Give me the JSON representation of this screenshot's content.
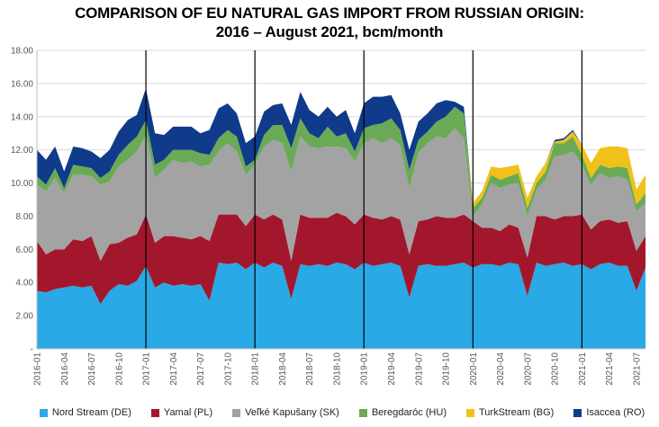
{
  "chart_data": {
    "type": "area",
    "stacked": true,
    "title_line1": "COMPARISON OF EU NATURAL GAS IMPORT FROM RUSSIAN ORIGIN:",
    "title_line2": "2016 – August 2021, bcm/month",
    "ylim": [
      0,
      18
    ],
    "yticks": [
      "-",
      "2.00",
      "4.00",
      "6.00",
      "8.00",
      "10.00",
      "12.00",
      "14.00",
      "16.00",
      "18.00"
    ],
    "grid": true,
    "legend_position": "bottom",
    "x_labels": [
      "2016-01",
      "2016-04",
      "2016-07",
      "2016-10",
      "2017-01",
      "2017-04",
      "2017-07",
      "2017-10",
      "2018-01",
      "2018-04",
      "2018-07",
      "2018-10",
      "2019-01",
      "2019-04",
      "2019-07",
      "2019-10",
      "2020-01",
      "2020-04",
      "2020-07",
      "2020-10",
      "2021-01",
      "2021-04",
      "2021-07"
    ],
    "year_markers": [
      "2017-01",
      "2018-01",
      "2019-01",
      "2020-01",
      "2021-01"
    ],
    "series": [
      {
        "name": "Nord Stream (DE)",
        "color": "#29a9e6",
        "values": [
          3.5,
          3.4,
          3.6,
          3.7,
          3.8,
          3.7,
          3.8,
          2.7,
          3.5,
          3.9,
          3.8,
          4.1,
          5.0,
          3.7,
          4.0,
          3.8,
          3.9,
          3.8,
          3.9,
          2.9,
          5.2,
          5.1,
          5.2,
          4.8,
          5.2,
          4.9,
          5.2,
          5.0,
          3.0,
          5.1,
          5.0,
          5.1,
          5.0,
          5.2,
          5.1,
          4.8,
          5.2,
          5.0,
          5.1,
          5.2,
          5.0,
          3.1,
          5.0,
          5.1,
          5.0,
          5.0,
          5.1,
          5.2,
          4.9,
          5.1,
          5.1,
          5.0,
          5.2,
          5.1,
          3.2,
          5.2,
          5.0,
          5.1,
          5.2,
          5.0,
          5.1,
          4.8,
          5.1,
          5.2,
          5.0,
          5.0,
          3.5,
          4.9
        ]
      },
      {
        "name": "Yamal (PL)",
        "color": "#a3172c",
        "values": [
          3.0,
          2.3,
          2.4,
          2.3,
          2.8,
          2.8,
          3.0,
          2.6,
          2.8,
          2.5,
          2.9,
          2.8,
          3.1,
          2.7,
          2.8,
          3.0,
          2.8,
          2.8,
          2.9,
          3.6,
          2.9,
          3.0,
          2.9,
          2.6,
          2.9,
          2.9,
          2.9,
          2.8,
          2.3,
          3.0,
          2.9,
          2.8,
          2.9,
          3.0,
          2.9,
          2.7,
          2.9,
          2.9,
          2.7,
          2.8,
          2.8,
          2.6,
          2.7,
          2.7,
          3.0,
          2.9,
          2.8,
          2.9,
          2.8,
          2.2,
          2.2,
          2.1,
          2.3,
          2.2,
          2.3,
          2.8,
          3.0,
          2.7,
          2.8,
          3.0,
          3.0,
          2.4,
          2.6,
          2.6,
          2.6,
          2.7,
          2.4,
          1.9
        ]
      },
      {
        "name": "Veľké Kapušany (SK)",
        "color": "#a3a3a3",
        "values": [
          3.4,
          3.8,
          4.3,
          3.4,
          3.9,
          4.0,
          3.6,
          4.6,
          3.8,
          4.6,
          4.7,
          5.0,
          4.8,
          3.9,
          4.0,
          4.6,
          4.5,
          4.7,
          4.2,
          4.6,
          3.8,
          4.3,
          3.8,
          3.1,
          3.0,
          4.4,
          4.5,
          4.6,
          5.4,
          4.7,
          4.3,
          4.2,
          4.3,
          4.0,
          4.1,
          3.8,
          4.3,
          4.8,
          4.6,
          4.7,
          4.5,
          4.0,
          4.1,
          4.6,
          4.8,
          4.8,
          5.4,
          4.6,
          0.3,
          1.4,
          2.7,
          2.6,
          2.4,
          2.7,
          2.5,
          1.6,
          2.2,
          3.8,
          3.7,
          3.9,
          3.0,
          2.7,
          2.9,
          2.5,
          2.8,
          2.5,
          2.4,
          2.0
        ]
      },
      {
        "name": "Beregdaróc (HU)",
        "color": "#6aaa57",
        "values": [
          0.5,
          0.4,
          0.6,
          0.3,
          0.6,
          0.5,
          0.5,
          0.4,
          0.6,
          0.7,
          0.9,
          0.9,
          0.9,
          0.8,
          0.6,
          0.6,
          0.8,
          0.7,
          0.8,
          0.6,
          0.8,
          0.8,
          0.9,
          0.5,
          0.3,
          0.7,
          0.9,
          1.1,
          1.4,
          1.1,
          0.8,
          0.6,
          1.2,
          0.6,
          0.9,
          0.6,
          0.9,
          0.8,
          1.2,
          1.2,
          0.9,
          1.1,
          0.8,
          0.7,
          0.9,
          1.3,
          1.3,
          1.5,
          0.5,
          0.4,
          0.5,
          0.5,
          0.5,
          0.6,
          0.5,
          0.4,
          0.5,
          0.8,
          0.7,
          0.9,
          0.6,
          0.4,
          0.5,
          0.6,
          0.6,
          0.7,
          0.4,
          0.6
        ]
      },
      {
        "name": "TurkStream (BG)",
        "color": "#f1c019",
        "values": [
          0,
          0,
          0,
          0,
          0,
          0,
          0,
          0,
          0,
          0,
          0,
          0,
          0,
          0,
          0,
          0,
          0,
          0,
          0,
          0,
          0,
          0,
          0,
          0,
          0,
          0,
          0,
          0,
          0,
          0,
          0,
          0,
          0,
          0,
          0,
          0,
          0,
          0,
          0,
          0,
          0,
          0,
          0,
          0,
          0,
          0,
          0,
          0,
          0.3,
          0.4,
          0.5,
          0.7,
          0.6,
          0.5,
          0.6,
          0.4,
          0.5,
          0.1,
          0.2,
          0.3,
          0.6,
          0.9,
          1.0,
          1.3,
          1.2,
          1.2,
          0.9,
          1.1
        ]
      },
      {
        "name": "Isaccea (RO)",
        "color": "#0f3b8a",
        "values": [
          1.6,
          1.5,
          1.3,
          1.0,
          1.1,
          1.1,
          1.0,
          1.2,
          1.3,
          1.4,
          1.5,
          1.3,
          1.9,
          1.9,
          1.5,
          1.4,
          1.4,
          1.4,
          1.2,
          1.5,
          1.8,
          1.6,
          1.4,
          1.4,
          1.4,
          1.4,
          1.2,
          1.3,
          1.4,
          1.6,
          1.4,
          1.3,
          1.2,
          1.2,
          1.4,
          1.1,
          1.5,
          1.7,
          1.6,
          1.4,
          1.0,
          1.2,
          1.1,
          1.1,
          1.1,
          1.0,
          0.3,
          0.4,
          0,
          0,
          0,
          0,
          0,
          0,
          0,
          0,
          0,
          0.1,
          0.1,
          0.1,
          0,
          0,
          0,
          0,
          0,
          0,
          0,
          0
        ]
      }
    ]
  }
}
